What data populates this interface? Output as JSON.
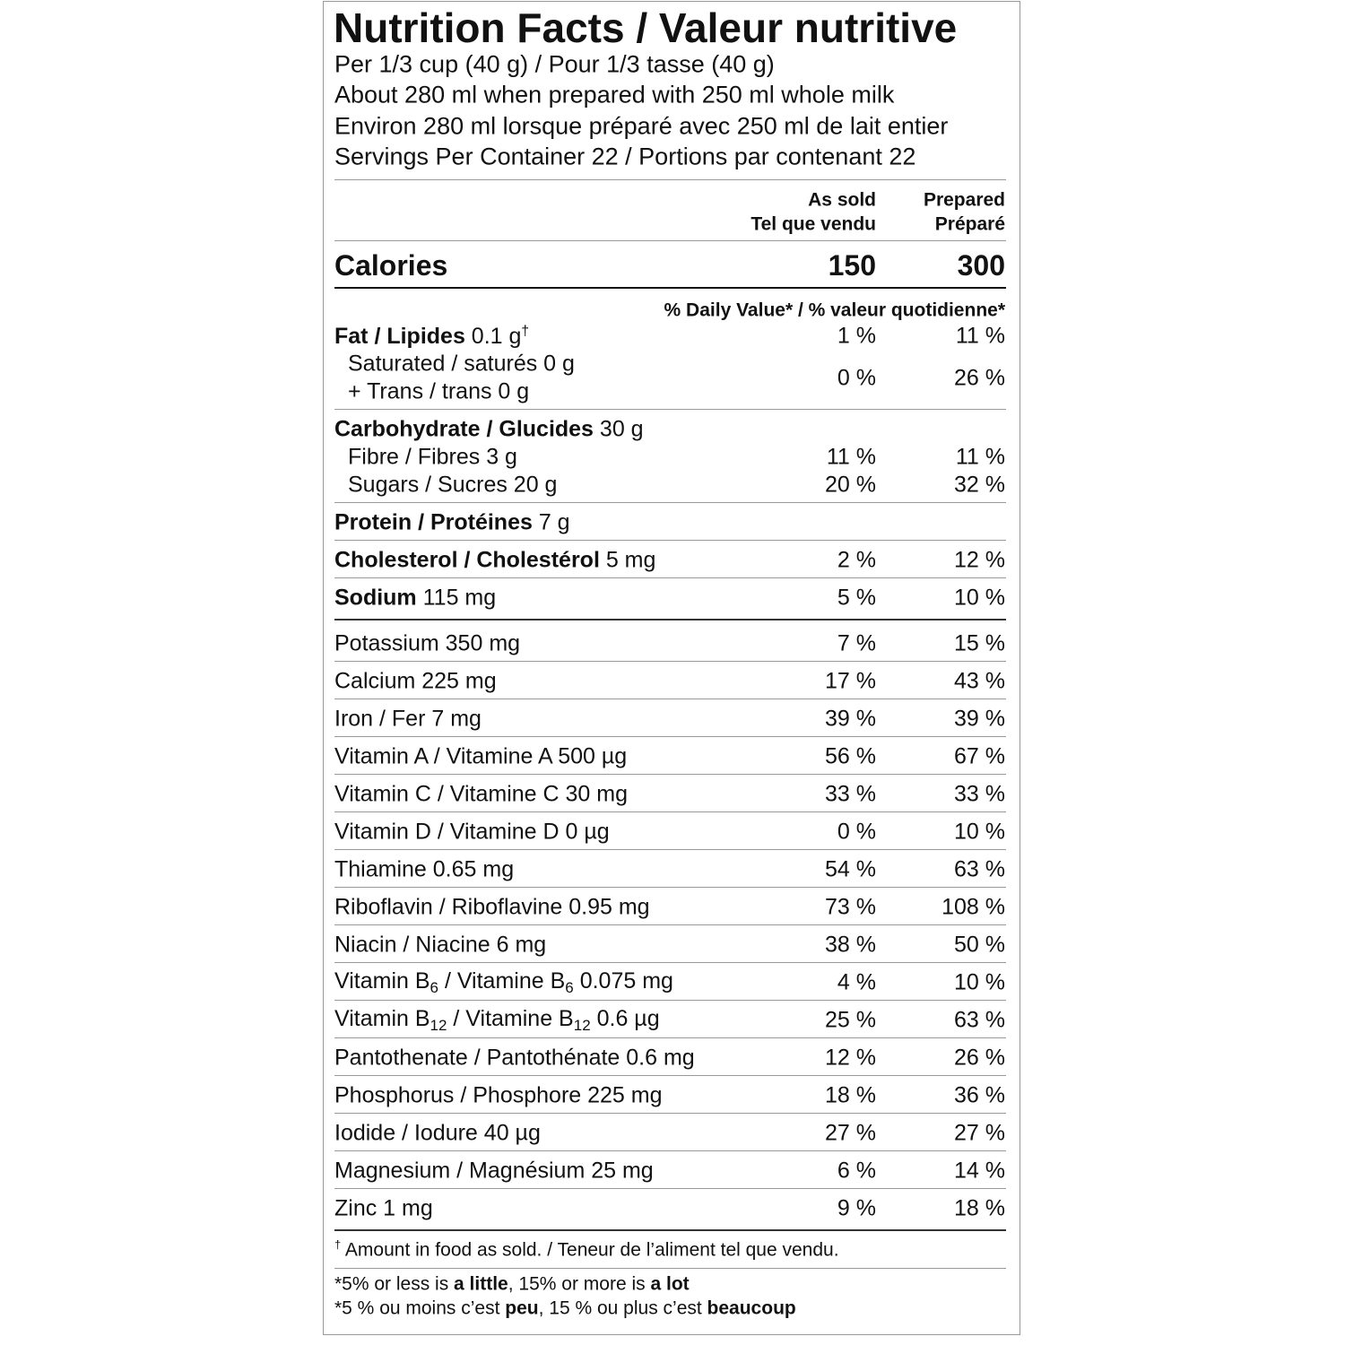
{
  "title": "Nutrition Facts / Valeur nutritive",
  "serving": [
    "Per 1/3 cup (40 g) / Pour 1/3 tasse (40 g)",
    "About 280 ml when prepared with 250 ml whole milk",
    "Environ 280 ml lorsque préparé avec 250 ml de lait entier",
    "Servings Per Container 22 / Portions par contenant 22"
  ],
  "columns": [
    [
      "As sold",
      "Tel que vendu"
    ],
    [
      "Prepared",
      "Préparé"
    ]
  ],
  "calories": {
    "label": "Calories",
    "values": [
      "150",
      "300"
    ]
  },
  "dv_header": "% Daily Value* / % valeur quotidienne*",
  "nutrients": [
    [
      [
        {
          "lines": [
            [
              {
                "text": "Fat / Lipides",
                "style": "bold"
              },
              {
                "text": " 0.1 g"
              },
              {
                "text": "†",
                "style": "sup"
              }
            ]
          ],
          "values": [
            "1 %",
            "11 %"
          ]
        },
        {
          "indent": true,
          "lines": [
            [
              {
                "text": "Saturated / saturés 0 g"
              }
            ],
            [
              {
                "text": " + Trans / trans 0 g"
              }
            ]
          ],
          "values": [
            "0 %",
            "26 %"
          ]
        }
      ],
      [
        {
          "lines": [
            [
              {
                "text": "Carbohydrate / Glucides",
                "style": "bold"
              },
              {
                "text": " 30 g"
              }
            ]
          ]
        },
        {
          "indent": true,
          "lines": [
            [
              {
                "text": "Fibre / Fibres 3 g"
              }
            ]
          ],
          "values": [
            "11 %",
            "11 %"
          ]
        },
        {
          "indent": true,
          "lines": [
            [
              {
                "text": "Sugars / Sucres 20 g"
              }
            ]
          ],
          "values": [
            "20 %",
            "32 %"
          ]
        }
      ],
      [
        {
          "lines": [
            [
              {
                "text": "Protein / Protéines",
                "style": "bold"
              },
              {
                "text": " 7 g"
              }
            ]
          ]
        }
      ],
      [
        {
          "lines": [
            [
              {
                "text": "Cholesterol / Cholestérol",
                "style": "bold"
              },
              {
                "text": " 5 mg"
              }
            ]
          ],
          "values": [
            "2 %",
            "12 %"
          ]
        }
      ],
      [
        {
          "lines": [
            [
              {
                "text": "Sodium",
                "style": "bold"
              },
              {
                "text": " 115 mg"
              }
            ]
          ],
          "values": [
            "5 %",
            "10 %"
          ]
        }
      ]
    ],
    [
      [
        {
          "lines": [
            [
              {
                "text": "Potassium 350 mg"
              }
            ]
          ],
          "values": [
            "7 %",
            "15 %"
          ]
        }
      ],
      [
        {
          "lines": [
            [
              {
                "text": "Calcium 225 mg"
              }
            ]
          ],
          "values": [
            "17 %",
            "43 %"
          ]
        }
      ],
      [
        {
          "lines": [
            [
              {
                "text": "Iron / Fer 7 mg"
              }
            ]
          ],
          "values": [
            "39 %",
            "39 %"
          ]
        }
      ],
      [
        {
          "lines": [
            [
              {
                "text": "Vitamin A / Vitamine A 500 µg"
              }
            ]
          ],
          "values": [
            "56 %",
            "67 %"
          ]
        }
      ],
      [
        {
          "lines": [
            [
              {
                "text": "Vitamin C / Vitamine C 30 mg"
              }
            ]
          ],
          "values": [
            "33 %",
            "33 %"
          ]
        }
      ],
      [
        {
          "lines": [
            [
              {
                "text": "Vitamin D / Vitamine D 0 µg"
              }
            ]
          ],
          "values": [
            "0 %",
            "10 %"
          ]
        }
      ],
      [
        {
          "lines": [
            [
              {
                "text": "Thiamine 0.65 mg"
              }
            ]
          ],
          "values": [
            "54 %",
            "63 %"
          ]
        }
      ],
      [
        {
          "lines": [
            [
              {
                "text": "Riboflavin / Riboflavine 0.95 mg"
              }
            ]
          ],
          "values": [
            "73 %",
            "108 %"
          ]
        }
      ],
      [
        {
          "lines": [
            [
              {
                "text": "Niacin / Niacine 6 mg"
              }
            ]
          ],
          "values": [
            "38 %",
            "50 %"
          ]
        }
      ],
      [
        {
          "lines": [
            [
              {
                "text": "Vitamin B"
              },
              {
                "text": "6",
                "style": "sub"
              },
              {
                "text": " / Vitamine B"
              },
              {
                "text": "6",
                "style": "sub"
              },
              {
                "text": " 0.075 mg"
              }
            ]
          ],
          "values": [
            "4 %",
            "10 %"
          ]
        }
      ],
      [
        {
          "lines": [
            [
              {
                "text": "Vitamin B"
              },
              {
                "text": "12",
                "style": "sub"
              },
              {
                "text": " / Vitamine B"
              },
              {
                "text": "12",
                "style": "sub"
              },
              {
                "text": " 0.6 µg"
              }
            ]
          ],
          "values": [
            "25 %",
            "63 %"
          ]
        }
      ],
      [
        {
          "lines": [
            [
              {
                "text": "Pantothenate / Pantothénate 0.6 mg"
              }
            ]
          ],
          "values": [
            "12 %",
            "26 %"
          ]
        }
      ],
      [
        {
          "lines": [
            [
              {
                "text": "Phosphorus / Phosphore 225 mg"
              }
            ]
          ],
          "values": [
            "18 %",
            "36 %"
          ]
        }
      ],
      [
        {
          "lines": [
            [
              {
                "text": "Iodide / Iodure 40 µg"
              }
            ]
          ],
          "values": [
            "27 %",
            "27 %"
          ]
        }
      ],
      [
        {
          "lines": [
            [
              {
                "text": "Magnesium / Magnésium 25 mg"
              }
            ]
          ],
          "values": [
            "6 %",
            "14 %"
          ]
        }
      ],
      [
        {
          "lines": [
            [
              {
                "text": "Zinc 1 mg"
              }
            ]
          ],
          "values": [
            "9 %",
            "18 %"
          ]
        }
      ]
    ]
  ],
  "footnote": [
    {
      "text": "†",
      "style": "sup"
    },
    {
      "text": " Amount in food as sold. / Teneur de l’aliment tel que vendu."
    }
  ],
  "legend": [
    [
      {
        "text": "*5% or less is "
      },
      {
        "text": "a little",
        "style": "bold"
      },
      {
        "text": ", 15% or more is "
      },
      {
        "text": "a lot",
        "style": "bold"
      }
    ],
    [
      {
        "text": "*5 % ou moins c’est "
      },
      {
        "text": "peu",
        "style": "bold"
      },
      {
        "text": ", 15 % ou plus c’est "
      },
      {
        "text": "beaucoup",
        "style": "bold"
      }
    ]
  ]
}
